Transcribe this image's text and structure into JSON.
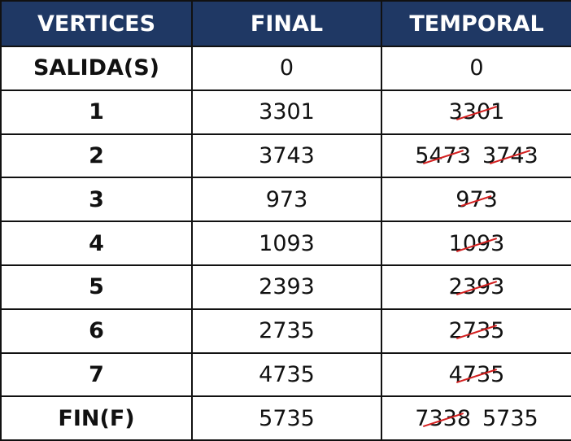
{
  "header": {
    "vertices": "VERTICES",
    "final": "FINAL",
    "temporal": "TEMPORAL"
  },
  "rows": [
    {
      "vertex": "SALIDA(S)",
      "final": "0",
      "temporal": [
        "0"
      ],
      "struck": [
        false
      ]
    },
    {
      "vertex": "1",
      "final": "3301",
      "temporal": [
        "3301"
      ],
      "struck": [
        true
      ]
    },
    {
      "vertex": "2",
      "final": "3743",
      "temporal": [
        "5473",
        "3743"
      ],
      "struck": [
        true,
        true
      ]
    },
    {
      "vertex": "3",
      "final": "973",
      "temporal": [
        "973"
      ],
      "struck": [
        true
      ]
    },
    {
      "vertex": "4",
      "final": "1093",
      "temporal": [
        "1093"
      ],
      "struck": [
        true
      ]
    },
    {
      "vertex": "5",
      "final": "2393",
      "temporal": [
        "2393"
      ],
      "struck": [
        true
      ]
    },
    {
      "vertex": "6",
      "final": "2735",
      "temporal": [
        "2735"
      ],
      "struck": [
        true
      ]
    },
    {
      "vertex": "7",
      "final": "4735",
      "temporal": [
        "4735"
      ],
      "struck": [
        true
      ]
    },
    {
      "vertex": "FIN(F)",
      "final": "5735",
      "temporal": [
        "7338",
        "5735"
      ],
      "struck": [
        true,
        false
      ]
    }
  ],
  "colors": {
    "header_bg": "#1f3864",
    "header_text": "#ffffff",
    "strike": "#d42020",
    "border": "#111111"
  }
}
